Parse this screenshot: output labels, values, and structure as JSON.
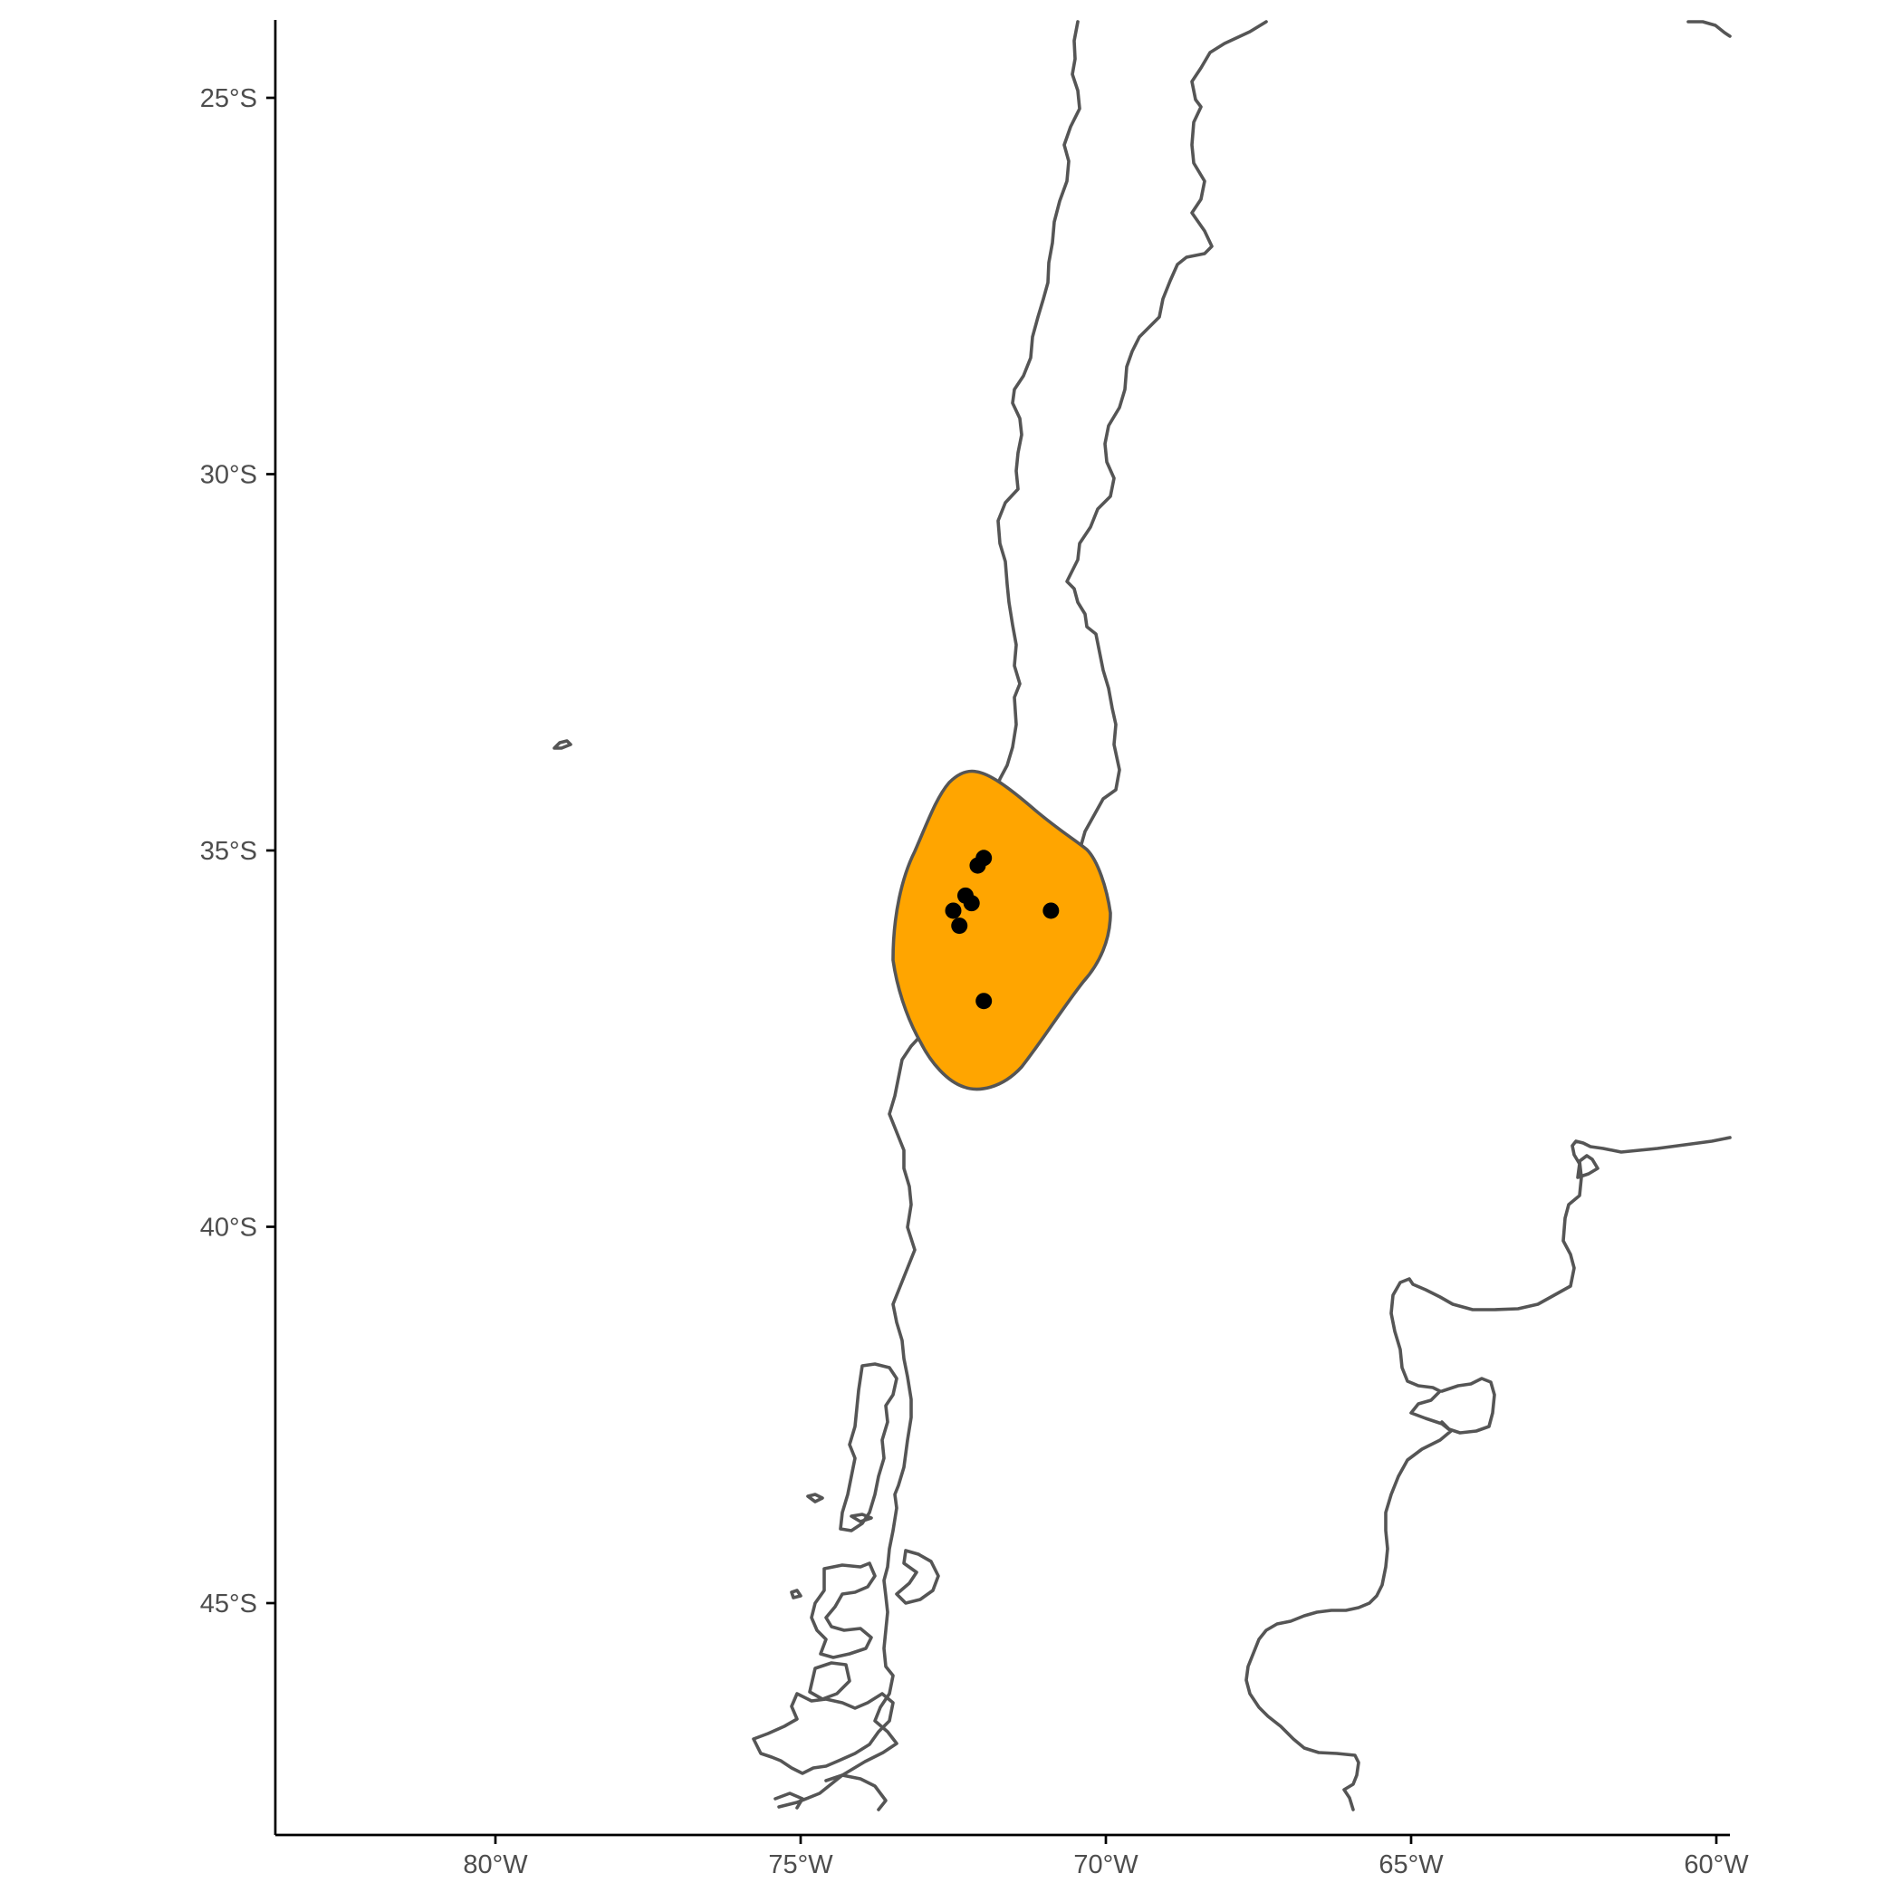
{
  "map": {
    "y_ticks": [
      {
        "label": "25°S",
        "lat": -25
      },
      {
        "label": "30°S",
        "lat": -30
      },
      {
        "label": "35°S",
        "lat": -35
      },
      {
        "label": "40°S",
        "lat": -40
      },
      {
        "label": "45°S",
        "lat": -45
      }
    ],
    "x_ticks": [
      {
        "label": "80°W",
        "lon": -80
      },
      {
        "label": "75°W",
        "lon": -75
      },
      {
        "label": "70°W",
        "lon": -70
      },
      {
        "label": "65°W",
        "lon": -65
      },
      {
        "label": "60°W",
        "lon": -60
      }
    ],
    "range_fill_color": "#FFA500",
    "outline_color": "#555555",
    "point_color": "#000000"
  },
  "chart_data": {
    "type": "scatter",
    "xlim": [
      -83.5,
      -60
    ],
    "ylim": [
      -48,
      -24
    ],
    "points": [
      {
        "lon": -72.0,
        "lat": -35.1
      },
      {
        "lon": -72.1,
        "lat": -35.2
      },
      {
        "lon": -72.3,
        "lat": -35.6
      },
      {
        "lon": -72.2,
        "lat": -35.7
      },
      {
        "lon": -72.5,
        "lat": -35.8
      },
      {
        "lon": -72.4,
        "lat": -36.0
      },
      {
        "lon": -70.9,
        "lat": -35.8
      },
      {
        "lon": -72.0,
        "lat": -37.0
      }
    ]
  }
}
